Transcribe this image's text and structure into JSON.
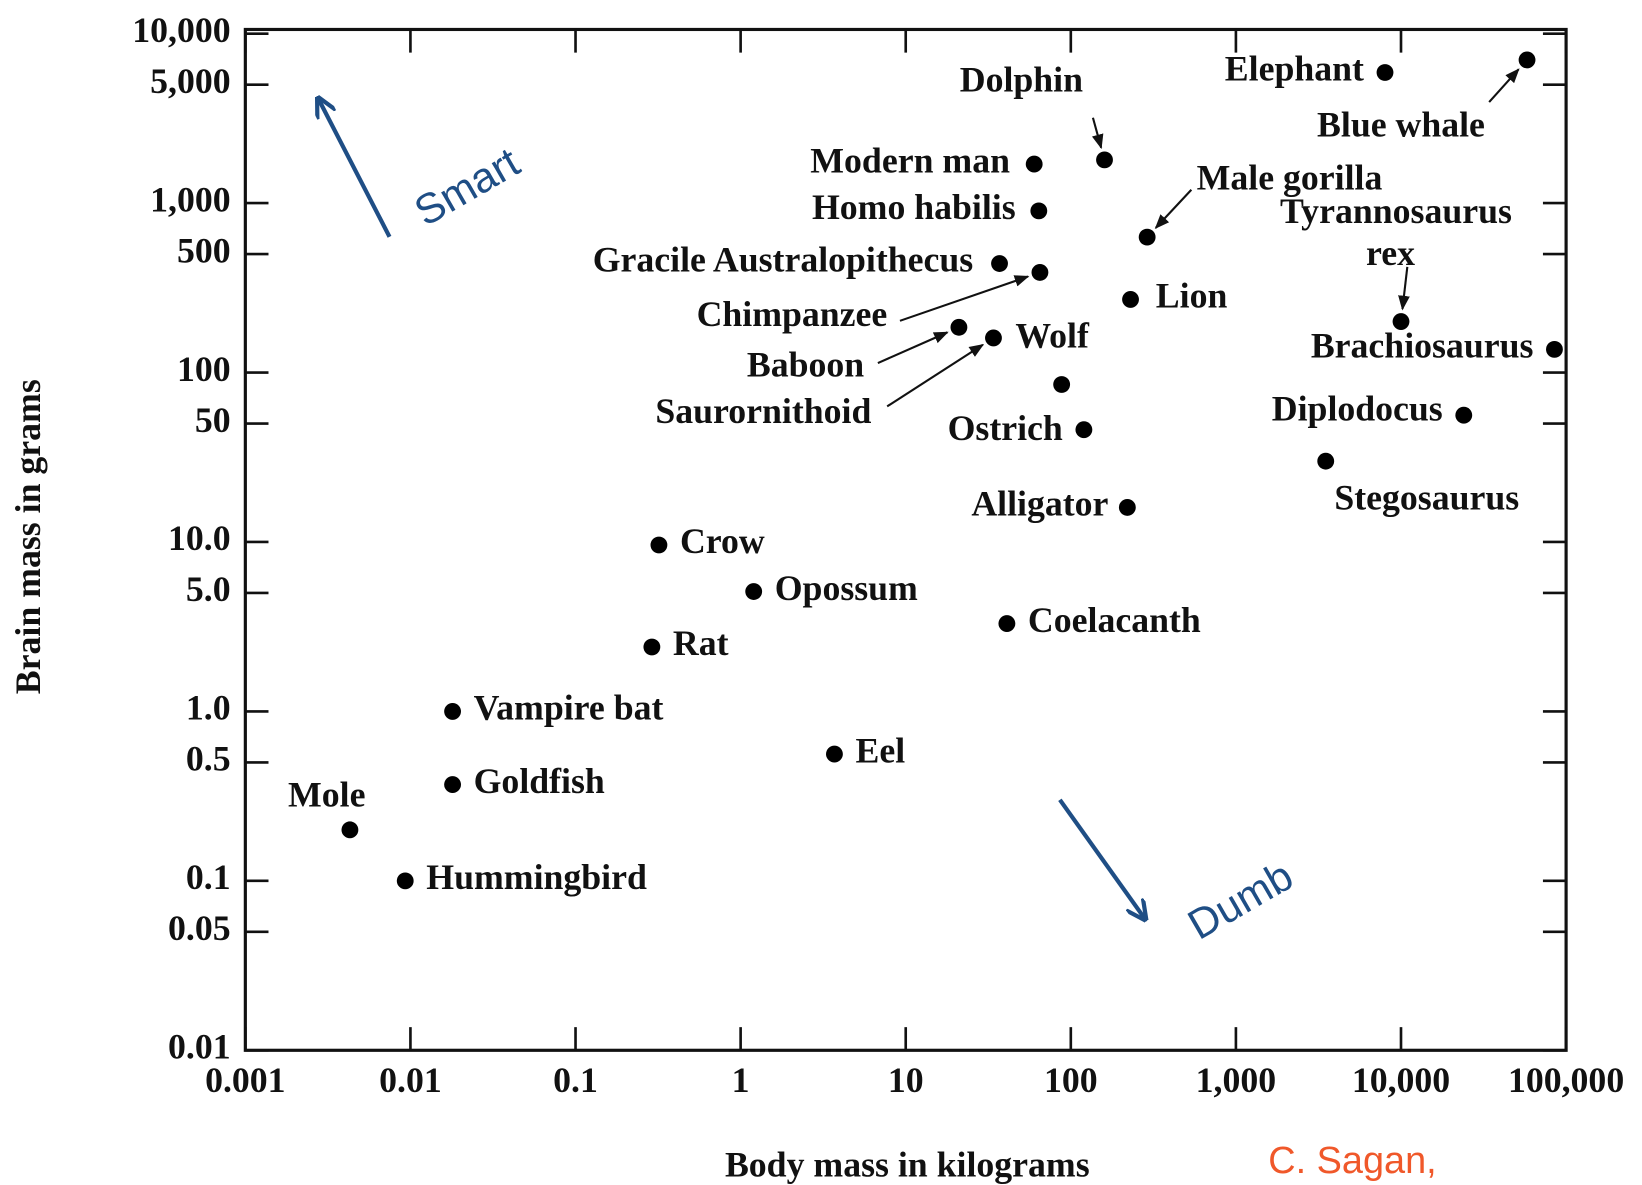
{
  "chart_data": {
    "type": "scatter",
    "xlabel": "Body mass in kilograms",
    "ylabel": "Brain mass in grams",
    "log_x": true,
    "log_y": true,
    "color": "#000000",
    "labels": [
      "Elephant",
      "Blue whale",
      "Dolphin",
      "Modern man",
      "Homo habilis",
      "Gracile Australopithecus",
      "Chimpanzee",
      "Male gorilla",
      "Lion",
      "Tyrannosaurus rex",
      "Brachiosaurus",
      "Baboon",
      "Saurornithoid",
      "Wolf",
      "Ostrich",
      "Diplodocus",
      "Stegosaurus",
      "Alligator",
      "Crow",
      "Opossum",
      "Coelacanth",
      "Rat",
      "Vampire bat",
      "Eel",
      "Goldfish",
      "Mole",
      "Hummingbird"
    ],
    "x": [
      8000,
      58000,
      160,
      60,
      64,
      37,
      65,
      290,
      230,
      10000,
      85000,
      21,
      34,
      88,
      120,
      24000,
      3500,
      220,
      0.32,
      1.2,
      41,
      0.29,
      0.018,
      3.7,
      0.018,
      0.0043,
      0.0093
    ],
    "y": [
      5900,
      7000,
      1800,
      1700,
      900,
      440,
      390,
      630,
      270,
      200,
      137,
      185,
      160,
      85,
      46,
      56,
      30,
      16,
      9.6,
      5.1,
      3.3,
      2.4,
      1.0,
      0.56,
      0.37,
      0.2,
      0.1
    ],
    "xlim": [
      0.001,
      100000
    ],
    "ylim": [
      0.01,
      10000
    ],
    "xticks": [
      0.001,
      0.01,
      0.1,
      1,
      10,
      100,
      {
        "value": 1000,
        "label": "1,000"
      },
      {
        "value": 10000,
        "label": "10,000"
      },
      {
        "value": 100000,
        "label": "100,000"
      }
    ],
    "yticks": [
      0.01,
      0.05,
      0.1,
      0.5,
      {
        "value": 1,
        "label": "1.0"
      },
      {
        "value": 5,
        "label": "5.0"
      },
      {
        "value": 10,
        "label": "10.0"
      },
      50,
      100,
      500,
      {
        "value": 1000,
        "label": "1,000"
      },
      {
        "value": 5000,
        "label": "5,000"
      },
      {
        "value": 10000,
        "label": "10,000"
      }
    ],
    "annotations": [
      {
        "text": "Smart",
        "color": "#1f4e85"
      },
      {
        "text": "Dumb",
        "color": "#1f4e85"
      },
      {
        "text": "C. Sagan,",
        "color": "#f0582a"
      }
    ]
  }
}
